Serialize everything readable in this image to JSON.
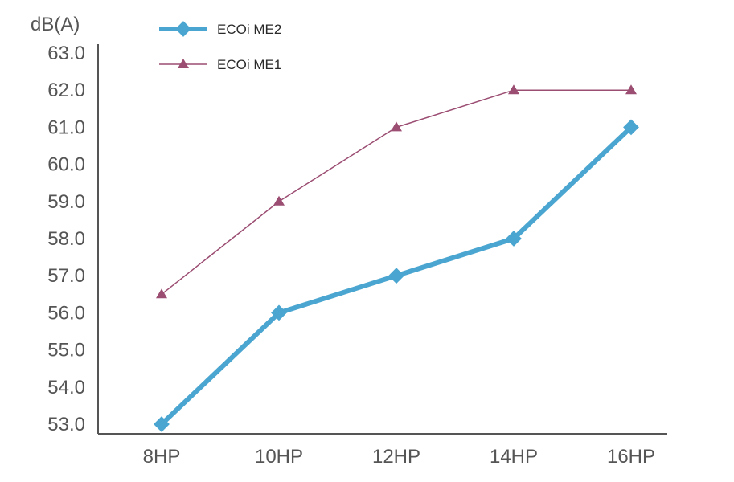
{
  "chart_data": {
    "type": "line",
    "ylabel": "dB(A)",
    "categories": [
      "8HP",
      "10HP",
      "12HP",
      "14HP",
      "16HP"
    ],
    "ylim": [
      53.0,
      63.0
    ],
    "yticks": [
      "53.0",
      "54.0",
      "55.0",
      "56.0",
      "57.0",
      "58.0",
      "59.0",
      "60.0",
      "61.0",
      "62.0",
      "63.0"
    ],
    "series": [
      {
        "name": "ECOi ME2",
        "values": [
          53.0,
          56.0,
          57.0,
          58.0,
          61.0
        ],
        "color": "#4aa6d0",
        "marker": "diamond"
      },
      {
        "name": "ECOi ME1",
        "values": [
          56.5,
          59.0,
          61.0,
          62.0,
          62.0
        ],
        "color": "#9b4d72",
        "marker": "triangle"
      }
    ],
    "legend_position": "top-center",
    "grid": false
  }
}
